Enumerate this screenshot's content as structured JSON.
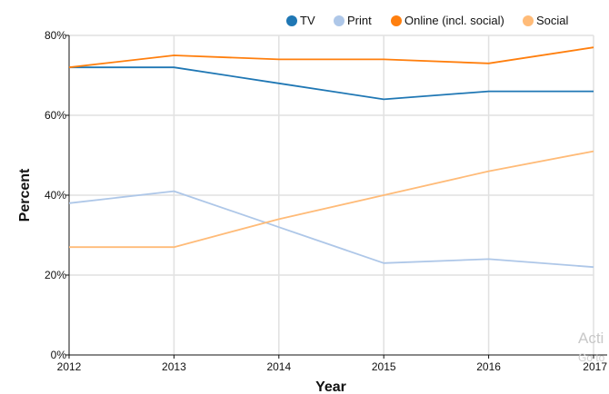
{
  "chart_data": {
    "type": "line",
    "title": "",
    "xlabel": "Year",
    "ylabel": "Percent",
    "x": [
      2012,
      2013,
      2014,
      2015,
      2016,
      2017
    ],
    "ylim": [
      0,
      80
    ],
    "y_ticks": [
      0,
      20,
      40,
      60,
      80
    ],
    "y_tick_labels": [
      "0%",
      "20%",
      "40%",
      "60%",
      "80%"
    ],
    "x_tick_labels": [
      "2012",
      "2013",
      "2014",
      "2015",
      "2016",
      "2017"
    ],
    "grid": true,
    "legend_position": "top",
    "series": [
      {
        "name": "TV",
        "color": "#1f77b4",
        "values": [
          72,
          72,
          68,
          64,
          66,
          66
        ]
      },
      {
        "name": "Print",
        "color": "#aec7e8",
        "values": [
          38,
          41,
          32,
          23,
          24,
          22
        ]
      },
      {
        "name": "Online (incl. social)",
        "color": "#ff7f0e",
        "values": [
          72,
          75,
          74,
          74,
          73,
          77
        ]
      },
      {
        "name": "Social",
        "color": "#ffbb78",
        "values": [
          27,
          27,
          34,
          40,
          46,
          51
        ]
      }
    ]
  },
  "watermark": {
    "line1": "Acti",
    "line2": "Go to"
  }
}
